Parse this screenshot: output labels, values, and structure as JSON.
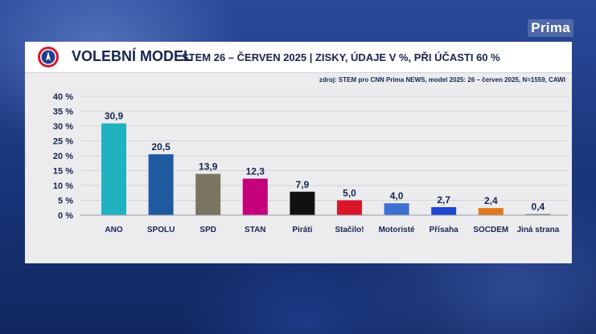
{
  "brand": {
    "logo_text": "Prima"
  },
  "header": {
    "title": "VOLEBNÍ MODEL",
    "subtitle": "STEM 26 – ČERVEN 2025 | ZISKY, ÚDAJE V %, PŘI ÚČASTI 60 %",
    "source": "zdroj: STEM pro CNN Prima NEWS, model 2025: 26 – červen 2025, N=1559, CAWI"
  },
  "chart_data": {
    "type": "bar",
    "categories": [
      "ANO",
      "SPOLU",
      "SPD",
      "STAN",
      "Piráti",
      "Stačilo!",
      "Motoristé",
      "Přísaha",
      "SOCDEM",
      "Jiná strana"
    ],
    "values": [
      30.9,
      20.5,
      13.9,
      12.3,
      7.9,
      5.0,
      4.0,
      2.7,
      2.4,
      0.4
    ],
    "value_labels": [
      "30,9",
      "20,5",
      "13,9",
      "12,3",
      "7,9",
      "5,0",
      "4,0",
      "2,7",
      "2,4",
      "0,4"
    ],
    "colors": [
      "#1fb3bf",
      "#1f5aa0",
      "#7a7560",
      "#c5007a",
      "#111111",
      "#d8172a",
      "#3e6fd1",
      "#1f46d0",
      "#e07a1f",
      "#888888"
    ],
    "yticks": [
      "0 %",
      "5 %",
      "10 %",
      "15 %",
      "20 %",
      "25 %",
      "30 %",
      "35 %",
      "40 %"
    ],
    "ylim": [
      0,
      40
    ],
    "grid": true
  }
}
